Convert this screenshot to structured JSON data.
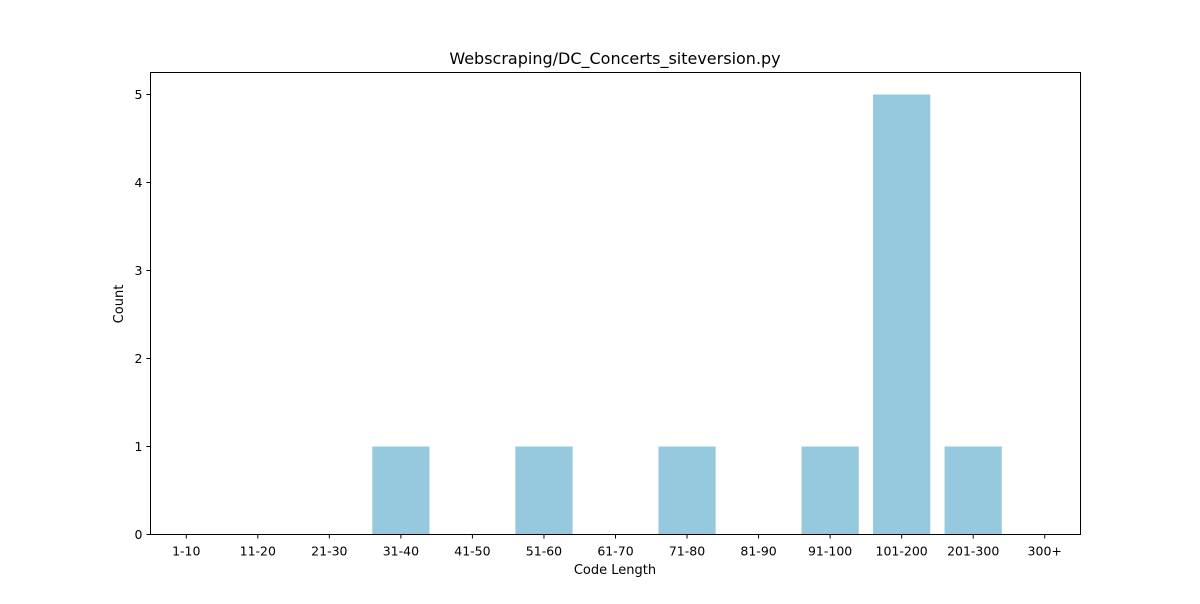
{
  "chart_data": {
    "type": "bar",
    "title": "Webscraping/DC_Concerts_siteversion.py",
    "xlabel": "Code Length",
    "ylabel": "Count",
    "categories": [
      "1-10",
      "11-20",
      "21-30",
      "31-40",
      "41-50",
      "51-60",
      "61-70",
      "71-80",
      "81-90",
      "91-100",
      "101-200",
      "201-300",
      "300+"
    ],
    "values": [
      0,
      0,
      0,
      1,
      0,
      1,
      0,
      1,
      0,
      1,
      5,
      1,
      0
    ],
    "ylim": [
      0,
      5.25
    ],
    "yticks": [
      0,
      1,
      2,
      3,
      4,
      5
    ],
    "grid": false,
    "bar_color": "#96c9dd"
  }
}
